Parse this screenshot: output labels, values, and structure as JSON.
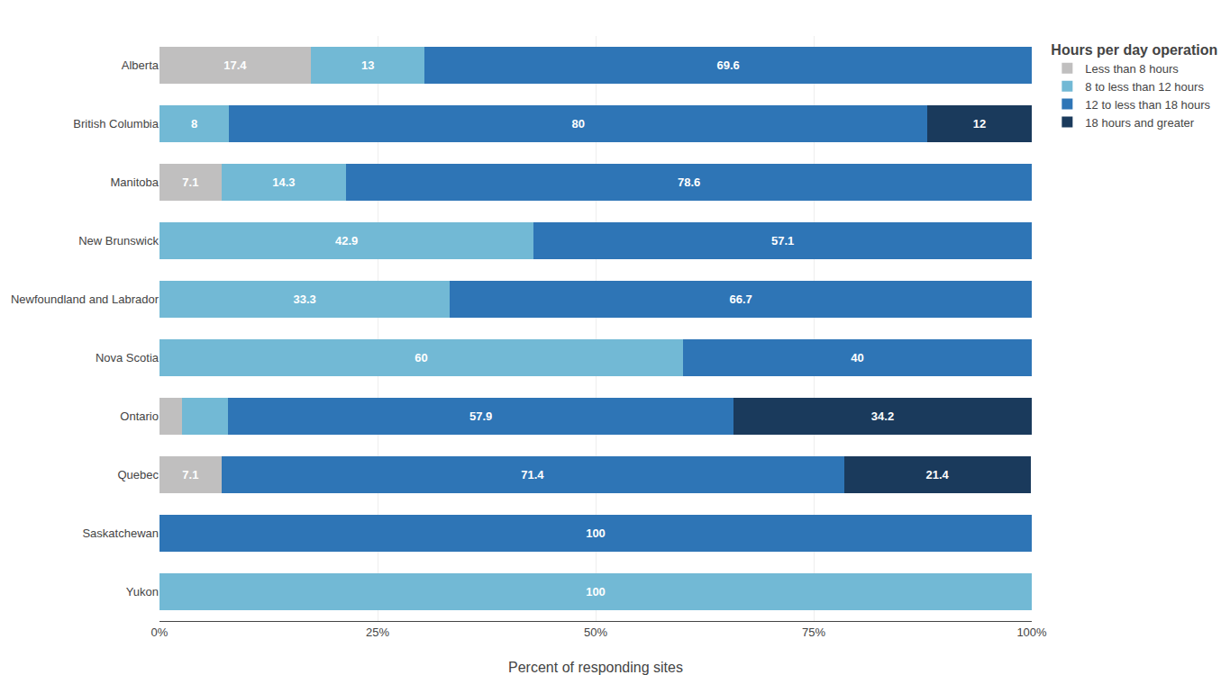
{
  "chart_data": {
    "type": "bar",
    "orientation": "horizontal",
    "stacked": true,
    "data_labels": true,
    "grid": true,
    "legend": "right",
    "legend_title": "Hours per day operation",
    "xlabel": "Percent of responding sites",
    "categories": [
      "Yukon",
      "Saskatchewan",
      "Quebec",
      "Ontario",
      "Nova Scotia",
      "Newfoundland and Labrador",
      "New Brunswick",
      "Manitoba",
      "British Columbia",
      "Alberta"
    ],
    "xlim": [
      0,
      100
    ],
    "xticks": [
      {
        "value": 0,
        "label": "0%"
      },
      {
        "value": 25,
        "label": "25%"
      },
      {
        "value": 50,
        "label": "50%"
      },
      {
        "value": 75,
        "label": "75%"
      },
      {
        "value": 100,
        "label": "100%"
      }
    ],
    "series": [
      {
        "name": "Less than 8 hours",
        "color": "#c0bfbf",
        "values": [
          0,
          0,
          7.1,
          2.6,
          0,
          0,
          0,
          7.1,
          0,
          17.4
        ],
        "value_labels": [
          null,
          null,
          "7.1",
          null,
          null,
          null,
          null,
          "7.1",
          null,
          "17.4"
        ]
      },
      {
        "name": "8 to less than 12 hours",
        "color": "#72b9d5",
        "values": [
          100,
          0,
          0,
          5.3,
          60,
          33.3,
          42.9,
          14.3,
          8,
          13
        ],
        "value_labels": [
          "100",
          null,
          null,
          null,
          "60",
          "33.3",
          "42.9",
          "14.3",
          "8",
          "13"
        ]
      },
      {
        "name": "12 to less than 18 hours",
        "color": "#2e75b6",
        "values": [
          0,
          100,
          71.4,
          57.9,
          40,
          66.7,
          57.1,
          78.6,
          80,
          69.6
        ],
        "value_labels": [
          null,
          "100",
          "71.4",
          "57.9",
          "40",
          "66.7",
          "57.1",
          "78.6",
          "80",
          "69.6"
        ]
      },
      {
        "name": "18 hours and greater",
        "color": "#1a3a5c",
        "values": [
          0,
          0,
          21.4,
          34.2,
          0,
          0,
          0,
          0,
          12,
          0
        ],
        "value_labels": [
          null,
          null,
          "21.4",
          "34.2",
          null,
          null,
          null,
          null,
          "12",
          null
        ]
      }
    ]
  }
}
